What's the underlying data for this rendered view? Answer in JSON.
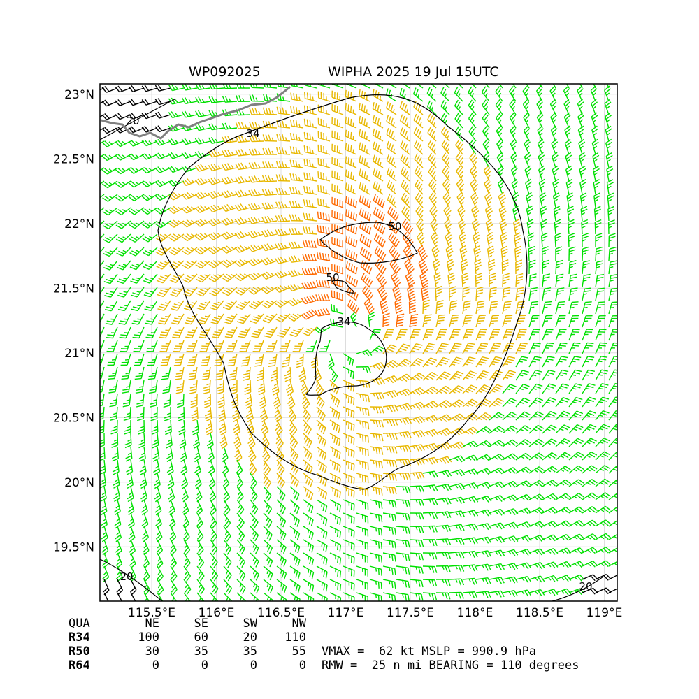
{
  "header": {
    "storm_id": "WP092025",
    "storm_title": "WIPHA 2025 19 Jul 15UTC"
  },
  "map": {
    "lon_range": [
      115.1,
      119.1
    ],
    "lat_range": [
      19.08,
      23.08
    ],
    "lon_ticks": [
      {
        "value": 115.5,
        "label": "115.5°E"
      },
      {
        "value": 116.0,
        "label": "116°E"
      },
      {
        "value": 116.5,
        "label": "116.5°E"
      },
      {
        "value": 117.0,
        "label": "117°E"
      },
      {
        "value": 117.5,
        "label": "117.5°E"
      },
      {
        "value": 118.0,
        "label": "118°E"
      },
      {
        "value": 118.5,
        "label": "118.5°E"
      },
      {
        "value": 119.0,
        "label": "119°E"
      }
    ],
    "lat_ticks": [
      {
        "value": 19.5,
        "label": "19.5°N"
      },
      {
        "value": 20.0,
        "label": "20°N"
      },
      {
        "value": 20.5,
        "label": "20.5°N"
      },
      {
        "value": 21.0,
        "label": "21°N"
      },
      {
        "value": 21.5,
        "label": "21.5°N"
      },
      {
        "value": 22.0,
        "label": "22°N"
      },
      {
        "value": 22.5,
        "label": "22.5°N"
      },
      {
        "value": 23.0,
        "label": "23°N"
      }
    ],
    "storm_center": {
      "lon": 117.0,
      "lat": 21.1
    },
    "wind_colors": {
      "below_34": "#00e000",
      "r34_to_50": "#e8b800",
      "r50_to_64": "#ff6a00",
      "land_barbs": "#000000",
      "coastline": "#808080"
    },
    "contour_labels": [
      "34",
      "50",
      "50",
      "34",
      "20",
      "20",
      "20"
    ]
  },
  "radii_table": {
    "headers": [
      "QUA",
      "NE",
      "SE",
      "SW",
      "NW"
    ],
    "rows": [
      {
        "label": "R34",
        "values": [
          "100",
          "60",
          "20",
          "110"
        ]
      },
      {
        "label": "R50",
        "values": [
          "30",
          "35",
          "35",
          "55"
        ]
      },
      {
        "label": "R64",
        "values": [
          "0",
          "0",
          "0",
          "0"
        ]
      }
    ]
  },
  "stats": {
    "line1": "VMAX =  62 kt MSLP = 990.9 hPa",
    "line2": "RMW =  25 n mi BEARING = 110 degrees"
  }
}
